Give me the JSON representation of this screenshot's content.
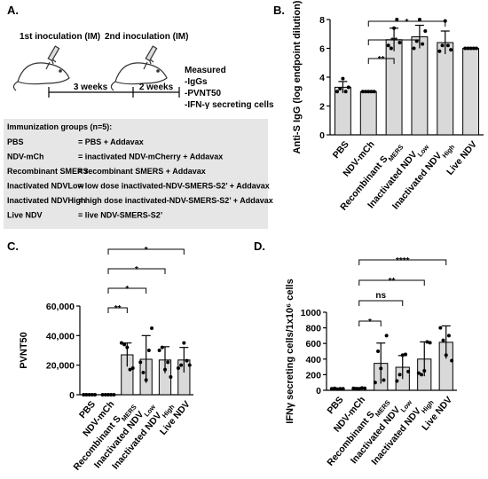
{
  "schematic": {
    "panel_label": "A.",
    "first_inoculation": "1st inoculation (IM)",
    "second_inoculation": "2nd inoculation (IM)",
    "interval_1": "3 weeks",
    "interval_2": "2 weeks",
    "measured": [
      "Measured",
      "-IgGs",
      "-PVNT50",
      "-IFN-γ secreting cells"
    ],
    "groups_title": "Immunization groups (n=5):",
    "groups": [
      [
        "PBS",
        "= PBS + Addavax"
      ],
      [
        "NDV-mCh",
        "= inactivated NDV-mCherry + Addavax"
      ],
      [
        "Recombinant SMERS",
        "= recombinant SMERS + Addavax"
      ],
      [
        "Inactivated NDVLow",
        "= low dose inactivated-NDV-SMERS-S2’ + Addavax"
      ],
      [
        "Inactivated NDVHigh",
        "= high dose inactivated-NDV-SMERS-S2’ + Addavax"
      ],
      [
        "Live NDV",
        "= live NDV-SMERS-S2’"
      ]
    ]
  },
  "chart_data": [
    {
      "type": "bar",
      "panel_label": "B.",
      "y_label": "Anti-S IgG (log endpoint dilution)",
      "categories": [
        "PBS",
        "NDV-mCh",
        {
          "text": "Recombinant S",
          "sub": "MERS"
        },
        {
          "text": "Inactivated NDV",
          "sub": "Low"
        },
        {
          "text": "Inactivated NDV",
          "sub": "High"
        },
        "Live NDV"
      ],
      "values": [
        3.3,
        3.0,
        6.6,
        6.8,
        6.4,
        6.0
      ],
      "errors": [
        0.4,
        0,
        0.8,
        0.8,
        0.8,
        0
      ],
      "points": [
        [
          3.0,
          3.2,
          3.9,
          3.0,
          3.3
        ],
        [
          3,
          3,
          3,
          3,
          3
        ],
        [
          6.2,
          6.0,
          7.4,
          8.0,
          6.4
        ],
        [
          6.0,
          6.5,
          8.0,
          6.3,
          7.2
        ],
        [
          5.8,
          6.2,
          7.9,
          6.2,
          5.9
        ],
        [
          6,
          6,
          6,
          6,
          6
        ]
      ],
      "color": "#d9d9d9",
      "ylim": [
        0,
        8
      ],
      "yticks": [
        0,
        2,
        4,
        6,
        8
      ],
      "comparisons": [
        {
          "from": 1,
          "to": 2,
          "label": "**"
        },
        {
          "from": 1,
          "to": 3,
          "label": "**"
        },
        {
          "from": 1,
          "to": 4,
          "label": "*"
        }
      ]
    },
    {
      "type": "bar",
      "panel_label": "C.",
      "y_label": "PVNT50",
      "categories": [
        "PBS",
        "NDV-mCh",
        {
          "text": "Recombinant S",
          "sub": "MERS"
        },
        {
          "text": "Inactivated NDV",
          "sub": "Low"
        },
        {
          "text": "Inactivated NDV",
          "sub": "High"
        },
        "Live NDV"
      ],
      "values": [
        0,
        0,
        27000,
        24000,
        23500,
        23500
      ],
      "errors": [
        0,
        0,
        8000,
        16000,
        9000,
        8500
      ],
      "points": [
        [
          0,
          0,
          0,
          0,
          0
        ],
        [
          0,
          0,
          0,
          0,
          0
        ],
        [
          35000,
          34000,
          32000,
          17000,
          18000
        ],
        [
          22000,
          15000,
          10000,
          30000,
          45000
        ],
        [
          30000,
          32000,
          17000,
          22000,
          12000
        ],
        [
          18000,
          20000,
          35000,
          23000,
          20000
        ]
      ],
      "color": "#d9d9d9",
      "ylim": [
        0,
        60000
      ],
      "yticks": [
        0,
        {
          "value": 20000,
          "label": "20,000"
        },
        {
          "value": 40000,
          "label": "40,000"
        },
        {
          "value": 60000,
          "label": "60,000"
        }
      ],
      "comparisons": [
        {
          "from": 1,
          "to": 2,
          "label": "**"
        },
        {
          "from": 1,
          "to": 3,
          "label": "*"
        },
        {
          "from": 1,
          "to": 4,
          "label": "*"
        },
        {
          "from": 1,
          "to": 5,
          "label": "*"
        }
      ]
    },
    {
      "type": "bar",
      "panel_label": "D.",
      "y_label": "IFNγ secreting cells/1x10⁶ cells",
      "categories": [
        "PBS",
        "NDV-mCh",
        {
          "text": "Recombinant S",
          "sub": "MERS"
        },
        {
          "text": "Inactivated NDV",
          "sub": "Low"
        },
        {
          "text": "Inactivated NDV",
          "sub": "High"
        },
        "Live NDV"
      ],
      "values": [
        20,
        25,
        345,
        295,
        400,
        615
      ],
      "errors": [
        8,
        10,
        260,
        150,
        220,
        210
      ],
      "points": [
        [
          20,
          25,
          15,
          20,
          20
        ],
        [
          25,
          20,
          15,
          30,
          25
        ],
        [
          100,
          500,
          280,
          130,
          700
        ],
        [
          120,
          200,
          450,
          460,
          240
        ],
        [
          220,
          200,
          250,
          620,
          610
        ],
        [
          800,
          640,
          450,
          700,
          380
        ]
      ],
      "color": "#d9d9d9",
      "ylim": [
        0,
        1000
      ],
      "yticks": [
        0,
        200,
        400,
        600,
        800,
        1000
      ],
      "comparisons": [
        {
          "from": 1,
          "to": 2,
          "label": "*"
        },
        {
          "from": 1,
          "to": 3,
          "label": "ns"
        },
        {
          "from": 1,
          "to": 4,
          "label": "**"
        },
        {
          "from": 1,
          "to": 5,
          "label": "****"
        }
      ]
    }
  ]
}
